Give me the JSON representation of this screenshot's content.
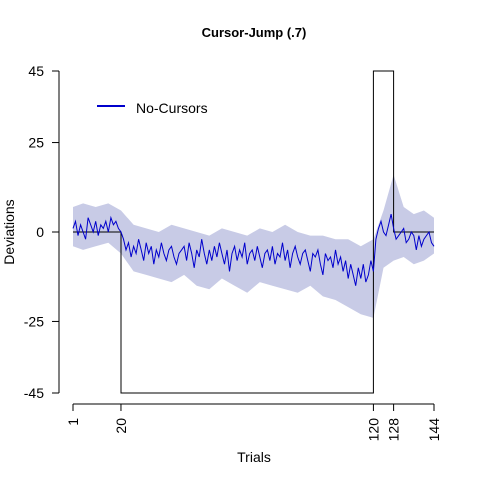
{
  "chart_data": {
    "type": "line",
    "title": "Cursor-Jump (.7)",
    "xlabel": "Trials",
    "ylabel": "Deviations",
    "xlim": [
      1,
      144
    ],
    "ylim": [
      -45,
      45
    ],
    "x_ticks": [
      1,
      20,
      120,
      128,
      144
    ],
    "y_ticks": [
      -45,
      -25,
      0,
      25,
      45
    ],
    "legend": {
      "placement": "top-left",
      "entries": [
        "No-Cursors"
      ]
    },
    "grid": false,
    "colors": {
      "series": "#0000cc",
      "band": "#c8cbe6",
      "schedule": "#000000"
    },
    "schedule": {
      "x": [
        1,
        20,
        20,
        120,
        120,
        128,
        128,
        144
      ],
      "y": [
        0,
        0,
        -45,
        -45,
        45,
        45,
        0,
        0
      ]
    },
    "series": [
      {
        "name": "No-Cursors",
        "x": [
          1,
          2,
          3,
          4,
          5,
          6,
          7,
          8,
          9,
          10,
          11,
          12,
          13,
          14,
          15,
          16,
          17,
          18,
          19,
          20,
          21,
          22,
          23,
          24,
          25,
          26,
          27,
          28,
          29,
          30,
          31,
          32,
          33,
          34,
          35,
          36,
          37,
          38,
          39,
          40,
          41,
          42,
          43,
          44,
          45,
          46,
          47,
          48,
          49,
          50,
          51,
          52,
          53,
          54,
          55,
          56,
          57,
          58,
          59,
          60,
          61,
          62,
          63,
          64,
          65,
          66,
          67,
          68,
          69,
          70,
          71,
          72,
          73,
          74,
          75,
          76,
          77,
          78,
          79,
          80,
          81,
          82,
          83,
          84,
          85,
          86,
          87,
          88,
          89,
          90,
          91,
          92,
          93,
          94,
          95,
          96,
          97,
          98,
          99,
          100,
          101,
          102,
          103,
          104,
          105,
          106,
          107,
          108,
          109,
          110,
          111,
          112,
          113,
          114,
          115,
          116,
          117,
          118,
          119,
          120,
          121,
          122,
          123,
          124,
          125,
          126,
          127,
          128,
          129,
          130,
          131,
          132,
          133,
          134,
          135,
          136,
          137,
          138,
          139,
          140,
          141,
          142,
          143,
          144
        ],
        "y": [
          1,
          3,
          -1,
          2,
          0,
          -2,
          4,
          2,
          0,
          3,
          -1,
          2,
          1,
          3,
          0,
          4,
          2,
          3,
          1,
          0,
          -2,
          -5,
          -3,
          -7,
          -4,
          -6,
          -2,
          -5,
          -8,
          -3,
          -6,
          -4,
          -9,
          -5,
          -7,
          -3,
          -6,
          -8,
          -5,
          -4,
          -7,
          -9,
          -6,
          -5,
          -4,
          -8,
          -3,
          -6,
          -10,
          -5,
          -7,
          -2,
          -6,
          -9,
          -5,
          -8,
          -4,
          -7,
          -3,
          -6,
          -9,
          -5,
          -11,
          -6,
          -4,
          -8,
          -5,
          -7,
          -3,
          -9,
          -6,
          -5,
          -8,
          -4,
          -7,
          -10,
          -6,
          -5,
          -8,
          -4,
          -9,
          -6,
          -7,
          -3,
          -8,
          -5,
          -10,
          -6,
          -4,
          -7,
          -9,
          -6,
          -5,
          -8,
          -11,
          -6,
          -7,
          -5,
          -9,
          -12,
          -6,
          -8,
          -7,
          -10,
          -5,
          -9,
          -7,
          -11,
          -8,
          -13,
          -9,
          -12,
          -15,
          -10,
          -13,
          -9,
          -14,
          -12,
          -8,
          -11,
          -2,
          1,
          3,
          0,
          -1,
          2,
          5,
          1,
          -2,
          -1,
          0,
          1,
          -3,
          -2,
          0,
          -1,
          -5,
          -1,
          -4,
          -2,
          -1,
          0,
          -3,
          -4
        ]
      }
    ],
    "bands": [
      {
        "name": "No-Cursors",
        "x": [
          1,
          5,
          10,
          15,
          20,
          25,
          30,
          35,
          40,
          45,
          50,
          55,
          60,
          65,
          70,
          75,
          80,
          85,
          90,
          95,
          100,
          105,
          110,
          115,
          120,
          124,
          128,
          132,
          136,
          140,
          144
        ],
        "lower": [
          -4,
          -5,
          -4,
          -3,
          -6,
          -11,
          -12,
          -13,
          -14,
          -12,
          -15,
          -16,
          -13,
          -15,
          -17,
          -14,
          -15,
          -16,
          -17,
          -15,
          -18,
          -19,
          -21,
          -23,
          -24,
          -10,
          -8,
          -7,
          -9,
          -8,
          -6
        ],
        "upper": [
          7,
          8,
          7,
          8,
          6,
          2,
          1,
          0,
          2,
          1,
          0,
          -1,
          1,
          0,
          -1,
          1,
          0,
          2,
          0,
          -1,
          -1,
          -2,
          -2,
          -4,
          -2,
          6,
          16,
          7,
          5,
          6,
          4
        ]
      }
    ]
  }
}
